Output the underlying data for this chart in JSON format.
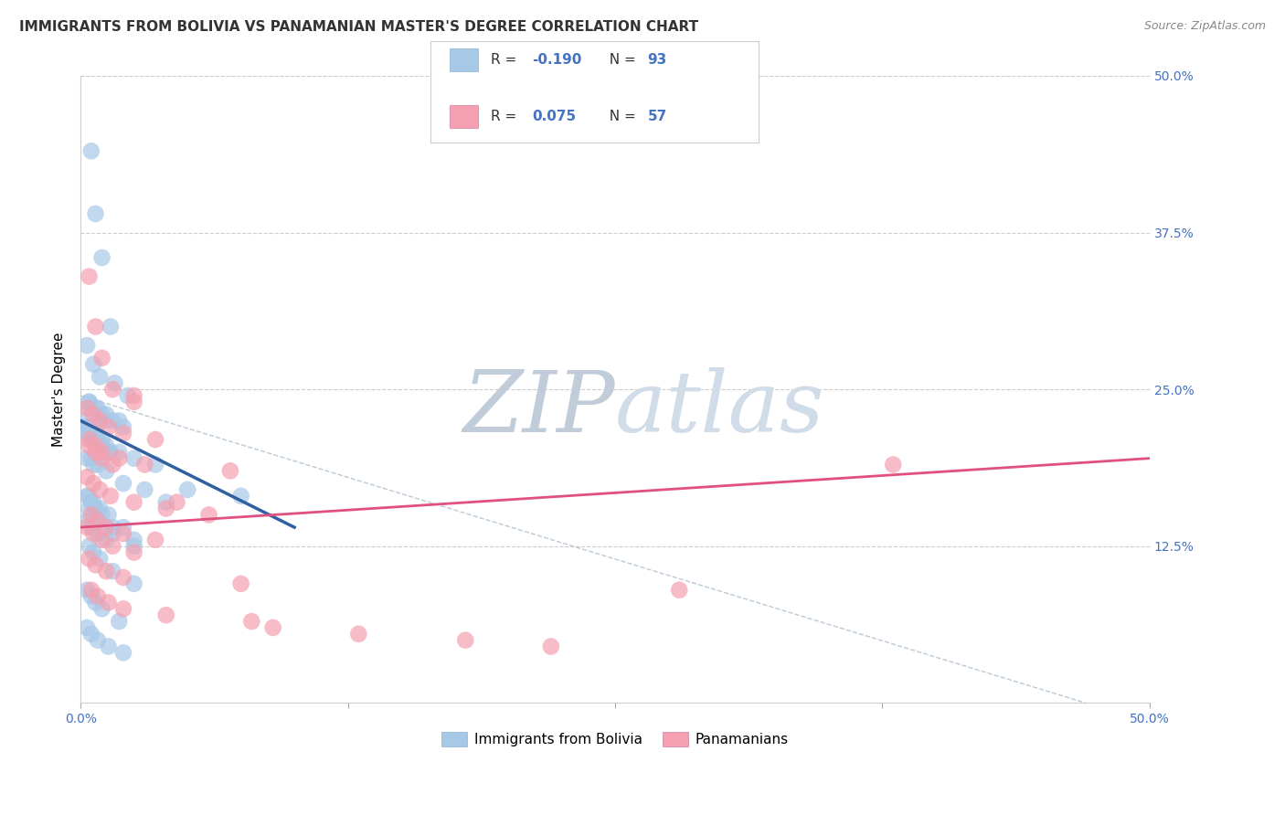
{
  "title": "IMMIGRANTS FROM BOLIVIA VS PANAMANIAN MASTER'S DEGREE CORRELATION CHART",
  "source": "Source: ZipAtlas.com",
  "ylabel": "Master's Degree",
  "xmin": 0.0,
  "xmax": 50.0,
  "ymin": 0.0,
  "ymax": 50.0,
  "yticks": [
    0.0,
    12.5,
    25.0,
    37.5,
    50.0
  ],
  "xticks": [
    0.0,
    12.5,
    25.0,
    37.5,
    50.0
  ],
  "blue_color": "#a8c8e8",
  "pink_color": "#f4a0b0",
  "blue_line_color": "#3060a0",
  "pink_line_color": "#e05080",
  "watermark_color": "#d0dce8",
  "blue_scatter_x": [
    0.5,
    0.7,
    1.0,
    1.4,
    0.3,
    0.6,
    0.9,
    1.6,
    2.2,
    0.4,
    0.8,
    1.2,
    1.8,
    0.2,
    0.5,
    0.7,
    1.0,
    1.3,
    0.3,
    0.6,
    0.9,
    1.2,
    0.4,
    0.8,
    1.1,
    0.2,
    0.5,
    0.8,
    1.0,
    0.3,
    0.6,
    0.4,
    0.7,
    1.0,
    1.5,
    2.0,
    0.5,
    0.8,
    1.2,
    1.8,
    2.5,
    3.5,
    5.0,
    7.5,
    0.3,
    0.6,
    0.9,
    1.3,
    0.4,
    0.7,
    1.0,
    1.4,
    0.5,
    0.8,
    1.2,
    2.0,
    3.0,
    4.0,
    0.3,
    0.5,
    0.7,
    1.0,
    1.5,
    2.5,
    0.4,
    0.6,
    0.9,
    1.3,
    2.0,
    0.3,
    0.5,
    0.8,
    1.2,
    0.4,
    0.6,
    0.9,
    1.5,
    2.5,
    0.3,
    0.5,
    0.7,
    1.0,
    1.8,
    0.4,
    0.6,
    0.8,
    1.5,
    2.5,
    0.3,
    0.5,
    0.8,
    1.3,
    2.0
  ],
  "blue_scatter_y": [
    44.0,
    39.0,
    35.5,
    30.0,
    28.5,
    27.0,
    26.0,
    25.5,
    24.5,
    24.0,
    23.5,
    23.0,
    22.5,
    22.0,
    21.5,
    21.0,
    20.5,
    20.0,
    21.5,
    21.0,
    20.5,
    20.0,
    23.5,
    23.0,
    22.5,
    22.5,
    22.0,
    21.0,
    20.5,
    19.5,
    19.0,
    24.0,
    23.5,
    23.0,
    22.5,
    22.0,
    21.5,
    21.0,
    20.5,
    20.0,
    19.5,
    19.0,
    17.0,
    16.5,
    21.5,
    21.0,
    20.5,
    20.0,
    22.0,
    21.5,
    21.0,
    20.0,
    19.5,
    19.0,
    18.5,
    17.5,
    17.0,
    16.0,
    16.5,
    16.0,
    15.5,
    15.0,
    14.0,
    13.0,
    16.5,
    16.0,
    15.5,
    15.0,
    14.0,
    14.5,
    14.0,
    13.5,
    13.0,
    12.5,
    12.0,
    11.5,
    10.5,
    9.5,
    9.0,
    8.5,
    8.0,
    7.5,
    6.5,
    15.5,
    15.0,
    14.5,
    13.5,
    12.5,
    6.0,
    5.5,
    5.0,
    4.5,
    4.0
  ],
  "pink_scatter_x": [
    0.4,
    0.7,
    1.0,
    1.5,
    2.5,
    0.3,
    0.6,
    0.9,
    1.3,
    2.0,
    3.5,
    0.4,
    0.7,
    1.0,
    1.5,
    2.5,
    4.5,
    0.3,
    0.6,
    0.9,
    1.4,
    2.5,
    4.0,
    6.0,
    0.5,
    0.8,
    1.2,
    2.0,
    3.5,
    0.4,
    0.7,
    1.0,
    1.8,
    3.0,
    0.3,
    0.6,
    1.0,
    1.5,
    2.5,
    0.4,
    0.7,
    1.2,
    2.0,
    7.0,
    7.5,
    28.0,
    0.5,
    0.8,
    1.3,
    2.0,
    4.0,
    8.0,
    9.0,
    13.0,
    18.0,
    22.0,
    38.0
  ],
  "pink_scatter_y": [
    34.0,
    30.0,
    27.5,
    25.0,
    24.0,
    23.5,
    23.0,
    22.5,
    22.0,
    21.5,
    21.0,
    20.5,
    20.0,
    19.5,
    19.0,
    24.5,
    16.0,
    18.0,
    17.5,
    17.0,
    16.5,
    16.0,
    15.5,
    15.0,
    15.0,
    14.5,
    14.0,
    13.5,
    13.0,
    21.0,
    20.5,
    20.0,
    19.5,
    19.0,
    14.0,
    13.5,
    13.0,
    12.5,
    12.0,
    11.5,
    11.0,
    10.5,
    10.0,
    18.5,
    9.5,
    9.0,
    9.0,
    8.5,
    8.0,
    7.5,
    7.0,
    6.5,
    6.0,
    5.5,
    5.0,
    4.5,
    19.0
  ],
  "blue_line_x0": 0.0,
  "blue_line_x1": 10.0,
  "blue_line_y0": 22.5,
  "blue_line_y1": 14.0,
  "pink_line_x0": 0.0,
  "pink_line_x1": 50.0,
  "pink_line_y0": 14.0,
  "pink_line_y1": 19.5,
  "diag_line_x0": 0.0,
  "diag_line_x1": 47.0,
  "diag_line_y0": 24.5,
  "diag_line_y1": 0.0,
  "grid_color": "#cccccc",
  "tick_color": "#4472c4",
  "title_fontsize": 11,
  "label_fontsize": 11,
  "tick_fontsize": 10,
  "legend_text_color": "#4472c4",
  "legend_label_color": "#333333"
}
